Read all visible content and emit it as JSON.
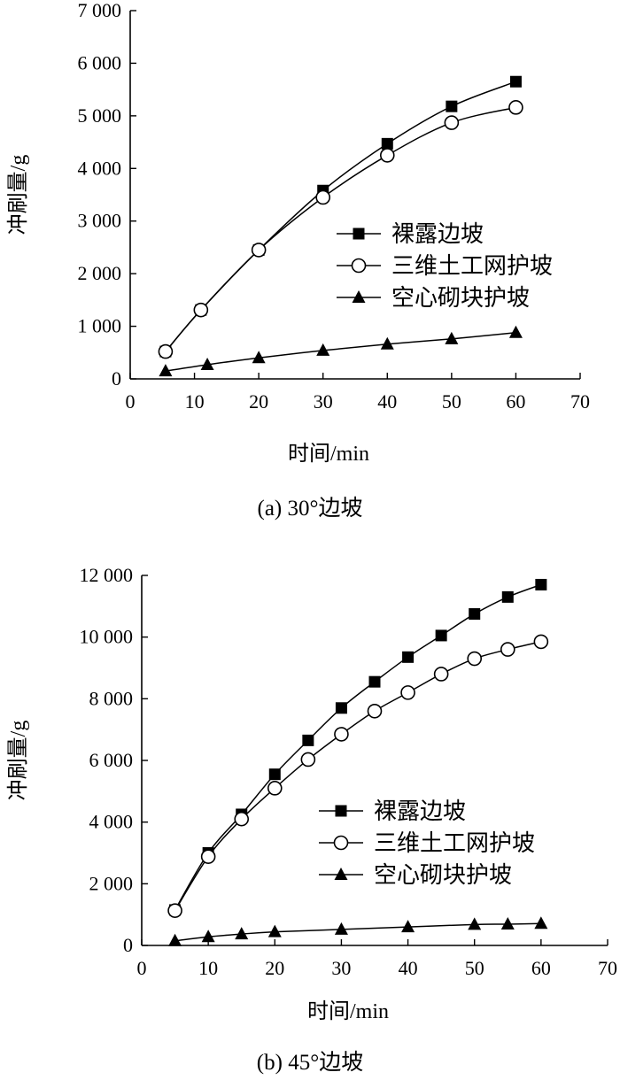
{
  "chart_data": [
    {
      "type": "line",
      "caption": "(a) 30°边坡",
      "xlabel": "时间/min",
      "ylabel": "冲刷量/g",
      "xlim": [
        0,
        70
      ],
      "ylim": [
        0,
        7000
      ],
      "x_ticks": [
        "0",
        "10",
        "20",
        "30",
        "40",
        "50",
        "60",
        "70"
      ],
      "y_ticks": [
        "0",
        "1 000",
        "2 000",
        "3 000",
        "4 000",
        "5 000",
        "6 000",
        "7 000"
      ],
      "legend_position": "center-right",
      "series": [
        {
          "name": "裸露边坡",
          "marker": "square-filled",
          "x": [
            5.5,
            11,
            20,
            30,
            40,
            50,
            60
          ],
          "y": [
            520,
            1310,
            2450,
            3580,
            4470,
            5180,
            5650
          ]
        },
        {
          "name": "三维土工网护坡",
          "marker": "circle-open",
          "x": [
            5.5,
            11,
            20,
            30,
            40,
            50,
            60
          ],
          "y": [
            520,
            1310,
            2450,
            3450,
            4250,
            4870,
            5160
          ]
        },
        {
          "name": "空心砌块护坡",
          "marker": "triangle-filled",
          "x": [
            5.5,
            12,
            20,
            30,
            40,
            50,
            60
          ],
          "y": [
            150,
            270,
            400,
            540,
            660,
            760,
            880
          ]
        }
      ]
    },
    {
      "type": "line",
      "caption": "(b) 45°边坡",
      "xlabel": "时间/min",
      "ylabel": "冲刷量/g",
      "xlim": [
        0,
        70
      ],
      "ylim": [
        0,
        12000
      ],
      "x_ticks": [
        "0",
        "10",
        "20",
        "30",
        "40",
        "50",
        "60",
        "70"
      ],
      "y_ticks": [
        "0",
        "2 000",
        "4 000",
        "6 000",
        "8 000",
        "10 000",
        "12 000"
      ],
      "legend_position": "center-right",
      "series": [
        {
          "name": "裸露边坡",
          "marker": "square-filled",
          "x": [
            5,
            10,
            15,
            20,
            25,
            30,
            35,
            40,
            45,
            50,
            55,
            60
          ],
          "y": [
            1150,
            3000,
            4250,
            5550,
            6650,
            7700,
            8550,
            9350,
            10050,
            10750,
            11300,
            11700
          ]
        },
        {
          "name": "三维土工网护坡",
          "marker": "circle-open",
          "x": [
            5,
            10,
            15,
            20,
            25,
            30,
            35,
            40,
            45,
            50,
            55,
            60
          ],
          "y": [
            1130,
            2880,
            4100,
            5100,
            6030,
            6850,
            7600,
            8200,
            8800,
            9300,
            9600,
            9850
          ]
        },
        {
          "name": "空心砌块护坡",
          "marker": "triangle-filled",
          "x": [
            5,
            10,
            15,
            20,
            30,
            40,
            50,
            55,
            60
          ],
          "y": [
            150,
            280,
            370,
            440,
            520,
            600,
            680,
            690,
            710
          ]
        }
      ]
    }
  ]
}
